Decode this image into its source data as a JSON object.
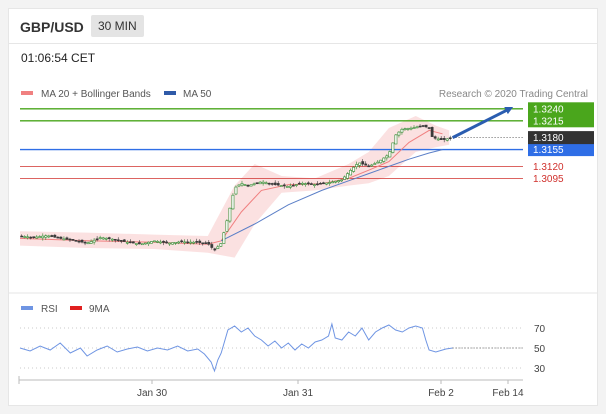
{
  "header": {
    "symbol": "GBP/USD",
    "timeframe": "30 MIN"
  },
  "timestamp": "01:06:54 CET",
  "credit": "Research © 2020 Trading Central",
  "colors": {
    "green": "#4aa61c",
    "blue": "#2f6ee6",
    "red": "#d0312d",
    "dark": "#333333",
    "band": "#f8c8c8",
    "ma20": "#f08080",
    "ma50": "#5b7fc7",
    "rsi": "#6f95e3",
    "arrow": "#2a5db0"
  },
  "chart_data": [
    {
      "type": "candlestick",
      "legend": [
        {
          "name": "MA 20 + Bollinger Bands",
          "color": "#f08080"
        },
        {
          "name": "MA 50",
          "color": "#2f5aa8"
        }
      ],
      "ylim": [
        1.29,
        1.325
      ],
      "x_ticks": [
        "Jan 30",
        "Jan 31",
        "Feb 2",
        "Feb 14"
      ],
      "current_price": "1.3180",
      "levels": [
        {
          "label": "1.3240",
          "value": 1.324,
          "kind": "resistance"
        },
        {
          "label": "1.3215",
          "value": 1.3215,
          "kind": "resistance"
        },
        {
          "label": "1.3155",
          "value": 1.3155,
          "kind": "pivot"
        },
        {
          "label": "1.3120",
          "value": 1.312,
          "kind": "support"
        },
        {
          "label": "1.3095",
          "value": 1.3095,
          "kind": "support"
        }
      ],
      "close_path": [
        [
          0,
          1.2975
        ],
        [
          4,
          1.2972
        ],
        [
          8,
          1.2976
        ],
        [
          12,
          1.297
        ],
        [
          16,
          1.2966
        ],
        [
          20,
          1.296
        ],
        [
          24,
          1.2972
        ],
        [
          28,
          1.2968
        ],
        [
          32,
          1.2962
        ],
        [
          36,
          1.2958
        ],
        [
          40,
          1.2965
        ],
        [
          44,
          1.296
        ],
        [
          48,
          1.2963
        ],
        [
          52,
          1.2962
        ],
        [
          56,
          1.296
        ],
        [
          58,
          1.2945
        ],
        [
          60,
          1.296
        ],
        [
          62,
          1.3015
        ],
        [
          64,
          1.3075
        ],
        [
          66,
          1.3085
        ],
        [
          68,
          1.308
        ],
        [
          72,
          1.3088
        ],
        [
          76,
          1.3082
        ],
        [
          80,
          1.3078
        ],
        [
          84,
          1.3085
        ],
        [
          88,
          1.3082
        ],
        [
          92,
          1.3086
        ],
        [
          96,
          1.3092
        ],
        [
          99,
          1.3115
        ],
        [
          101,
          1.3128
        ],
        [
          104,
          1.312
        ],
        [
          107,
          1.313
        ],
        [
          110,
          1.3145
        ],
        [
          112,
          1.3185
        ],
        [
          114,
          1.3198
        ],
        [
          117,
          1.32
        ],
        [
          120,
          1.3205
        ],
        [
          122,
          1.32
        ],
        [
          123,
          1.318
        ],
        [
          126,
          1.3175
        ],
        [
          129,
          1.318
        ]
      ],
      "ma20_path": [
        [
          0,
          1.297
        ],
        [
          20,
          1.2965
        ],
        [
          40,
          1.2962
        ],
        [
          56,
          1.2958
        ],
        [
          60,
          1.2965
        ],
        [
          66,
          1.3025
        ],
        [
          72,
          1.307
        ],
        [
          80,
          1.3082
        ],
        [
          90,
          1.3084
        ],
        [
          98,
          1.3095
        ],
        [
          104,
          1.3112
        ],
        [
          110,
          1.313
        ],
        [
          116,
          1.317
        ],
        [
          122,
          1.3195
        ],
        [
          126,
          1.3188
        ]
      ],
      "ma50_path": [
        [
          60,
          1.2965
        ],
        [
          70,
          1.3
        ],
        [
          80,
          1.304
        ],
        [
          90,
          1.307
        ],
        [
          98,
          1.309
        ],
        [
          104,
          1.3105
        ],
        [
          110,
          1.312
        ],
        [
          116,
          1.3135
        ],
        [
          122,
          1.3148
        ],
        [
          126,
          1.3155
        ]
      ],
      "band_upper": [
        [
          0,
          1.2985
        ],
        [
          20,
          1.2982
        ],
        [
          40,
          1.2978
        ],
        [
          56,
          1.2975
        ],
        [
          64,
          1.308
        ],
        [
          70,
          1.3125
        ],
        [
          78,
          1.31
        ],
        [
          88,
          1.3095
        ],
        [
          98,
          1.3125
        ],
        [
          104,
          1.315
        ],
        [
          110,
          1.32
        ],
        [
          118,
          1.3225
        ],
        [
          124,
          1.3205
        ],
        [
          128,
          1.3195
        ]
      ],
      "band_lower": [
        [
          0,
          1.2955
        ],
        [
          20,
          1.295
        ],
        [
          40,
          1.2948
        ],
        [
          56,
          1.294
        ],
        [
          64,
          1.293
        ],
        [
          70,
          1.3
        ],
        [
          78,
          1.3065
        ],
        [
          88,
          1.307
        ],
        [
          98,
          1.308
        ],
        [
          104,
          1.3085
        ],
        [
          110,
          1.31
        ],
        [
          118,
          1.315
        ],
        [
          124,
          1.316
        ],
        [
          128,
          1.3165
        ]
      ],
      "forecast_arrow": {
        "from": [
          129,
          1.318
        ],
        "to": [
          146,
          1.324
        ]
      }
    },
    {
      "type": "line",
      "legend": [
        {
          "name": "RSI",
          "color": "#6f95e3"
        },
        {
          "name": "9MA",
          "color": "#e02020"
        }
      ],
      "ylim": [
        20,
        80
      ],
      "y_ticks": [
        "70",
        "50",
        "30"
      ],
      "rsi_path": [
        [
          0,
          50
        ],
        [
          3,
          47
        ],
        [
          6,
          52
        ],
        [
          9,
          48
        ],
        [
          12,
          55
        ],
        [
          15,
          45
        ],
        [
          18,
          50
        ],
        [
          20,
          42
        ],
        [
          23,
          48
        ],
        [
          26,
          52
        ],
        [
          29,
          46
        ],
        [
          32,
          49
        ],
        [
          35,
          51
        ],
        [
          38,
          47
        ],
        [
          41,
          50
        ],
        [
          44,
          48
        ],
        [
          47,
          52
        ],
        [
          50,
          47
        ],
        [
          53,
          49
        ],
        [
          55,
          44
        ],
        [
          57,
          36
        ],
        [
          58,
          27
        ],
        [
          59,
          38
        ],
        [
          60,
          45
        ],
        [
          62,
          68
        ],
        [
          64,
          72
        ],
        [
          66,
          66
        ],
        [
          68,
          70
        ],
        [
          70,
          62
        ],
        [
          72,
          58
        ],
        [
          74,
          52
        ],
        [
          76,
          57
        ],
        [
          78,
          50
        ],
        [
          80,
          55
        ],
        [
          82,
          48
        ],
        [
          84,
          54
        ],
        [
          86,
          50
        ],
        [
          88,
          56
        ],
        [
          90,
          58
        ],
        [
          92,
          62
        ],
        [
          93,
          74
        ],
        [
          94,
          60
        ],
        [
          96,
          58
        ],
        [
          98,
          66
        ],
        [
          100,
          62
        ],
        [
          102,
          70
        ],
        [
          104,
          58
        ],
        [
          106,
          66
        ],
        [
          108,
          70
        ],
        [
          110,
          73
        ],
        [
          112,
          68
        ],
        [
          114,
          66
        ],
        [
          116,
          70
        ],
        [
          118,
          72
        ],
        [
          120,
          70
        ],
        [
          121,
          58
        ],
        [
          122,
          48
        ],
        [
          124,
          46
        ],
        [
          127,
          49
        ],
        [
          129,
          50
        ]
      ]
    }
  ]
}
